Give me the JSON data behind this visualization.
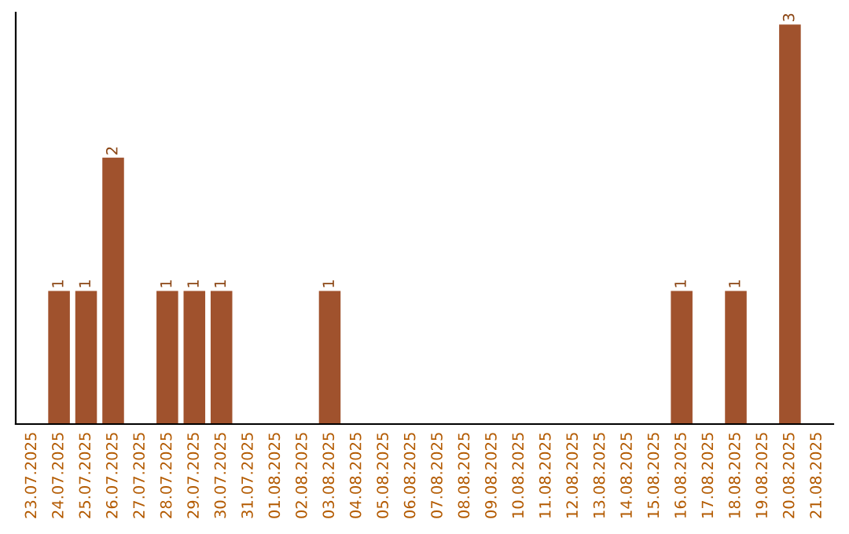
{
  "chart_data": {
    "type": "bar",
    "categories": [
      "23.07.2025",
      "24.07.2025",
      "25.07.2025",
      "26.07.2025",
      "27.07.2025",
      "28.07.2025",
      "29.07.2025",
      "30.07.2025",
      "31.07.2025",
      "01.08.2025",
      "02.08.2025",
      "03.08.2025",
      "04.08.2025",
      "05.08.2025",
      "06.08.2025",
      "07.08.2025",
      "08.08.2025",
      "09.08.2025",
      "10.08.2025",
      "11.08.2025",
      "12.08.2025",
      "13.08.2025",
      "14.08.2025",
      "15.08.2025",
      "16.08.2025",
      "17.08.2025",
      "18.08.2025",
      "19.08.2025",
      "20.08.2025",
      "21.08.2025"
    ],
    "values": [
      0,
      1,
      1,
      2,
      0,
      1,
      1,
      1,
      0,
      0,
      0,
      1,
      0,
      0,
      0,
      0,
      0,
      0,
      0,
      0,
      0,
      0,
      0,
      0,
      1,
      0,
      1,
      0,
      3,
      0
    ],
    "value_labels": [
      null,
      "1",
      "1",
      "2",
      null,
      "1",
      "1",
      "1",
      null,
      null,
      null,
      "1",
      null,
      null,
      null,
      null,
      null,
      null,
      null,
      null,
      null,
      null,
      null,
      null,
      "1",
      null,
      "1",
      null,
      "3",
      null
    ],
    "color": "#a0522d",
    "tick_labels": "x",
    "grid": false,
    "legend": false
  }
}
